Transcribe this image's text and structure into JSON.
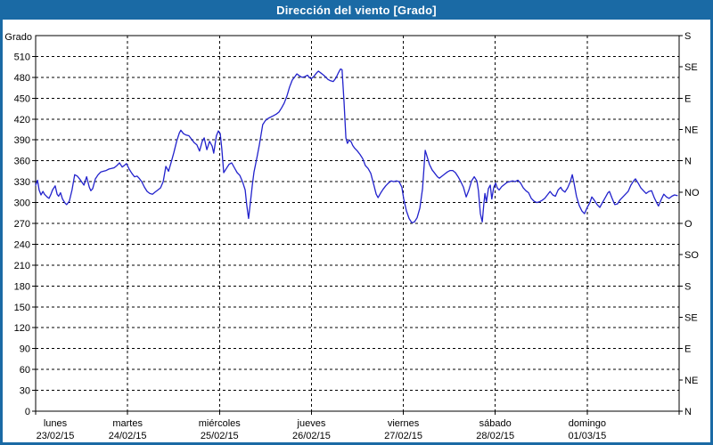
{
  "window": {
    "title": "Dirección del viento [Grado]"
  },
  "colors": {
    "frame": "#1a6aa5",
    "title_text": "#ffffff",
    "background": "#ffffff",
    "grid": "#000000",
    "series": "#2222cc",
    "label": "#000000"
  },
  "chart_data": {
    "type": "line",
    "title": "Dirección del viento [Grado]",
    "ylabel": "Grado",
    "xlabel": "",
    "ylim": [
      0,
      540
    ],
    "xlim_hours": [
      0,
      168
    ],
    "grid": "dashed",
    "legend_position": "none",
    "y_ticks": [
      0,
      30,
      60,
      90,
      120,
      150,
      180,
      210,
      240,
      270,
      300,
      330,
      360,
      390,
      420,
      450,
      480,
      510
    ],
    "right_axis_ticks": [
      {
        "value": 540,
        "label": "S"
      },
      {
        "value": 495,
        "label": "SE"
      },
      {
        "value": 450,
        "label": "E"
      },
      {
        "value": 405,
        "label": "NE"
      },
      {
        "value": 360,
        "label": "N"
      },
      {
        "value": 315,
        "label": "NO"
      },
      {
        "value": 270,
        "label": "O"
      },
      {
        "value": 225,
        "label": "SO"
      },
      {
        "value": 180,
        "label": "S"
      },
      {
        "value": 135,
        "label": "SE"
      },
      {
        "value": 90,
        "label": "E"
      },
      {
        "value": 45,
        "label": "NE"
      },
      {
        "value": 0,
        "label": "N"
      }
    ],
    "days": [
      {
        "name": "lunes",
        "date": "23/02/15"
      },
      {
        "name": "martes",
        "date": "24/02/15"
      },
      {
        "name": "miércoles",
        "date": "25/02/15"
      },
      {
        "name": "jueves",
        "date": "26/02/15"
      },
      {
        "name": "viernes",
        "date": "27/02/15"
      },
      {
        "name": "sábado",
        "date": "28/02/15"
      },
      {
        "name": "domingo",
        "date": "01/03/15"
      }
    ],
    "series": [
      {
        "name": "Dirección del viento",
        "unit": "Grado",
        "color": "#2222cc",
        "points": [
          [
            0,
            325
          ],
          [
            0.5,
            332
          ],
          [
            0.9,
            318
          ],
          [
            1.4,
            311
          ],
          [
            1.9,
            316
          ],
          [
            2.3,
            312
          ],
          [
            3,
            308
          ],
          [
            3.5,
            306
          ],
          [
            4,
            312
          ],
          [
            4.4,
            318
          ],
          [
            5.1,
            324
          ],
          [
            5.6,
            312
          ],
          [
            6,
            309
          ],
          [
            6.5,
            314
          ],
          [
            7,
            305
          ],
          [
            7.7,
            299
          ],
          [
            8.1,
            297
          ],
          [
            8.8,
            302
          ],
          [
            9.5,
            318
          ],
          [
            10.2,
            340
          ],
          [
            10.9,
            338
          ],
          [
            11.6,
            333
          ],
          [
            12.1,
            329
          ],
          [
            12.6,
            325
          ],
          [
            13.3,
            337
          ],
          [
            14,
            322
          ],
          [
            14.4,
            317
          ],
          [
            14.9,
            320
          ],
          [
            15.6,
            334
          ],
          [
            16.3,
            340
          ],
          [
            17,
            344
          ],
          [
            17.7,
            345
          ],
          [
            18.4,
            346
          ],
          [
            19.1,
            348
          ],
          [
            19.8,
            349
          ],
          [
            20.5,
            350
          ],
          [
            21.2,
            353
          ],
          [
            21.9,
            357
          ],
          [
            22.6,
            351
          ],
          [
            23.3,
            354
          ],
          [
            23.7,
            356
          ],
          [
            24.4,
            348
          ],
          [
            25.1,
            342
          ],
          [
            25.8,
            337
          ],
          [
            26.5,
            338
          ],
          [
            27,
            335
          ],
          [
            27.7,
            330
          ],
          [
            28.4,
            322
          ],
          [
            29.1,
            316
          ],
          [
            29.8,
            313
          ],
          [
            30.5,
            312
          ],
          [
            31.2,
            315
          ],
          [
            31.9,
            318
          ],
          [
            32.6,
            321
          ],
          [
            33.3,
            330
          ],
          [
            34,
            352
          ],
          [
            34.7,
            345
          ],
          [
            35.4,
            358
          ],
          [
            36.1,
            372
          ],
          [
            36.8,
            388
          ],
          [
            37.5,
            400
          ],
          [
            37.9,
            404
          ],
          [
            38.6,
            399
          ],
          [
            39.3,
            397
          ],
          [
            40,
            396
          ],
          [
            40.7,
            391
          ],
          [
            41.4,
            386
          ],
          [
            42.1,
            383
          ],
          [
            42.8,
            374
          ],
          [
            43.5,
            388
          ],
          [
            44,
            393
          ],
          [
            44.7,
            376
          ],
          [
            45.4,
            388
          ],
          [
            46.1,
            381
          ],
          [
            46.5,
            371
          ],
          [
            47.2,
            396
          ],
          [
            47.7,
            403
          ],
          [
            48.2,
            399
          ],
          [
            48.6,
            377
          ],
          [
            49.1,
            343
          ],
          [
            49.8,
            349
          ],
          [
            50.5,
            355
          ],
          [
            51.2,
            357
          ],
          [
            51.9,
            350
          ],
          [
            52.6,
            343
          ],
          [
            53.3,
            339
          ],
          [
            54,
            330
          ],
          [
            54.7,
            318
          ],
          [
            55.1,
            297
          ],
          [
            55.6,
            277
          ],
          [
            56.1,
            302
          ],
          [
            56.6,
            326
          ],
          [
            57,
            344
          ],
          [
            57.5,
            357
          ],
          [
            57.9,
            368
          ],
          [
            58.4,
            383
          ],
          [
            58.9,
            399
          ],
          [
            59.3,
            412
          ],
          [
            60,
            418
          ],
          [
            60.7,
            421
          ],
          [
            61.4,
            423
          ],
          [
            62.1,
            425
          ],
          [
            62.8,
            427
          ],
          [
            63.5,
            430
          ],
          [
            64.2,
            436
          ],
          [
            64.9,
            443
          ],
          [
            65.6,
            453
          ],
          [
            66.3,
            466
          ],
          [
            67,
            476
          ],
          [
            67.7,
            481
          ],
          [
            68.2,
            485
          ],
          [
            68.9,
            482
          ],
          [
            69.6,
            480
          ],
          [
            70.3,
            481
          ],
          [
            71,
            483
          ],
          [
            71.4,
            480
          ],
          [
            71.9,
            478
          ],
          [
            72.6,
            481
          ],
          [
            73.3,
            486
          ],
          [
            73.8,
            489
          ],
          [
            74.5,
            486
          ],
          [
            75.2,
            483
          ],
          [
            75.6,
            481
          ],
          [
            76.3,
            477
          ],
          [
            77,
            475
          ],
          [
            77.7,
            474
          ],
          [
            78.4,
            479
          ],
          [
            79.1,
            487
          ],
          [
            79.6,
            492
          ],
          [
            80,
            491
          ],
          [
            80.5,
            445
          ],
          [
            81,
            393
          ],
          [
            81.4,
            385
          ],
          [
            81.9,
            390
          ],
          [
            82.4,
            387
          ],
          [
            82.8,
            382
          ],
          [
            83.3,
            378
          ],
          [
            84,
            374
          ],
          [
            84.7,
            369
          ],
          [
            85.4,
            363
          ],
          [
            86.1,
            353
          ],
          [
            86.8,
            349
          ],
          [
            87.5,
            342
          ],
          [
            88.2,
            327
          ],
          [
            88.9,
            312
          ],
          [
            89.4,
            307
          ],
          [
            90,
            313
          ],
          [
            90.7,
            319
          ],
          [
            91.4,
            324
          ],
          [
            92.1,
            328
          ],
          [
            92.8,
            331
          ],
          [
            93.5,
            330
          ],
          [
            94.2,
            331
          ],
          [
            94.9,
            330
          ],
          [
            95.6,
            322
          ],
          [
            96.1,
            305
          ],
          [
            96.8,
            288
          ],
          [
            97.5,
            277
          ],
          [
            98.2,
            271
          ],
          [
            98.9,
            272
          ],
          [
            99.6,
            278
          ],
          [
            100.3,
            292
          ],
          [
            101,
            320
          ],
          [
            101.7,
            375
          ],
          [
            102.1,
            368
          ],
          [
            102.8,
            355
          ],
          [
            103.5,
            347
          ],
          [
            104.2,
            342
          ],
          [
            104.9,
            337
          ],
          [
            105.4,
            335
          ],
          [
            106.1,
            338
          ],
          [
            106.8,
            341
          ],
          [
            107.5,
            344
          ],
          [
            108.2,
            346
          ],
          [
            108.9,
            346
          ],
          [
            109.6,
            343
          ],
          [
            110.3,
            337
          ],
          [
            111,
            330
          ],
          [
            111.7,
            322
          ],
          [
            112.4,
            308
          ],
          [
            113.1,
            318
          ],
          [
            113.8,
            331
          ],
          [
            114.5,
            337
          ],
          [
            115.2,
            331
          ],
          [
            115.6,
            317
          ],
          [
            116.1,
            284
          ],
          [
            116.6,
            272
          ],
          [
            117,
            297
          ],
          [
            117.3,
            313
          ],
          [
            117.7,
            301
          ],
          [
            118.2,
            320
          ],
          [
            118.7,
            325
          ],
          [
            119.1,
            305
          ],
          [
            119.6,
            322
          ],
          [
            120.1,
            328
          ],
          [
            120.5,
            321
          ],
          [
            121,
            318
          ],
          [
            121.7,
            323
          ],
          [
            122.4,
            326
          ],
          [
            123.1,
            329
          ],
          [
            123.8,
            330
          ],
          [
            124.5,
            331
          ],
          [
            125.2,
            330
          ],
          [
            125.9,
            332
          ],
          [
            126.6,
            328
          ],
          [
            127.3,
            321
          ],
          [
            128,
            317
          ],
          [
            128.7,
            314
          ],
          [
            129.4,
            306
          ],
          [
            130.1,
            302
          ],
          [
            130.8,
            300
          ],
          [
            131.5,
            301
          ],
          [
            132.2,
            303
          ],
          [
            132.9,
            306
          ],
          [
            133.6,
            311
          ],
          [
            134.3,
            316
          ],
          [
            135,
            311
          ],
          [
            135.7,
            309
          ],
          [
            136.4,
            318
          ],
          [
            137.1,
            322
          ],
          [
            137.5,
            318
          ],
          [
            138.2,
            315
          ],
          [
            138.9,
            321
          ],
          [
            139.6,
            330
          ],
          [
            140.1,
            340
          ],
          [
            140.5,
            330
          ],
          [
            141.2,
            309
          ],
          [
            141.9,
            296
          ],
          [
            142.6,
            288
          ],
          [
            143.3,
            284
          ],
          [
            144,
            293
          ],
          [
            144.7,
            300
          ],
          [
            145.2,
            308
          ],
          [
            145.9,
            303
          ],
          [
            146.6,
            297
          ],
          [
            147.3,
            293
          ],
          [
            148,
            300
          ],
          [
            148.7,
            307
          ],
          [
            149.4,
            314
          ],
          [
            149.8,
            316
          ],
          [
            150.5,
            306
          ],
          [
            151.2,
            297
          ],
          [
            151.9,
            298
          ],
          [
            152.6,
            304
          ],
          [
            153.3,
            308
          ],
          [
            154,
            312
          ],
          [
            154.7,
            316
          ],
          [
            155.4,
            325
          ],
          [
            156.1,
            331
          ],
          [
            156.6,
            334
          ],
          [
            157.3,
            328
          ],
          [
            158,
            321
          ],
          [
            158.7,
            317
          ],
          [
            159.4,
            313
          ],
          [
            160.1,
            316
          ],
          [
            160.8,
            317
          ],
          [
            161.5,
            307
          ],
          [
            162.2,
            299
          ],
          [
            162.6,
            295
          ],
          [
            163.3,
            304
          ],
          [
            164,
            312
          ],
          [
            164.7,
            308
          ],
          [
            165.4,
            306
          ],
          [
            166.1,
            309
          ],
          [
            166.8,
            311
          ],
          [
            167.5,
            310
          ]
        ]
      }
    ]
  }
}
